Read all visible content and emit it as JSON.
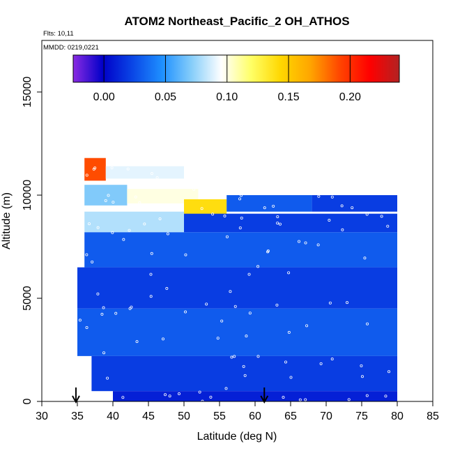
{
  "chart_data": {
    "type": "heatmap",
    "title": "ATOM2 Northeast_Pacific_2 OH_ATHOS",
    "flights_label": "Flts: 10,11",
    "dates_label": "MMDD: 0219,0221",
    "xlabel": "Latitude (deg N)",
    "ylabel": "Altitude (m)",
    "xlim": [
      30,
      85
    ],
    "ylim": [
      0,
      17500
    ],
    "x_ticks": [
      "30",
      "35",
      "40",
      "45",
      "50",
      "55",
      "60",
      "65",
      "70",
      "75",
      "80",
      "85"
    ],
    "y_ticks": [
      "0",
      "5000",
      "10000",
      "15000"
    ],
    "colorbar": {
      "range": [
        -0.025,
        0.24
      ],
      "tick_values": [
        0.0,
        0.05,
        0.1,
        0.15,
        0.2
      ],
      "tick_labels": [
        "0.00",
        "0.05",
        "0.10",
        "0.15",
        "0.20"
      ],
      "colors": [
        "#8a2be2",
        "#0000c8",
        "#0a46e6",
        "#1e90ff",
        "#87cefa",
        "#ffffff",
        "#ffff66",
        "#ffd700",
        "#ffa500",
        "#ff4500",
        "#ff0000",
        "#b22222"
      ]
    },
    "cells": [
      {
        "lat0": 36,
        "lat1": 39,
        "alt0": 10700,
        "alt1": 11800,
        "value": 0.19
      },
      {
        "lat0": 39,
        "lat1": 50,
        "alt0": 10800,
        "alt1": 11400,
        "value": 0.09
      },
      {
        "lat0": 36,
        "lat1": 42,
        "alt0": 9500,
        "alt1": 10500,
        "value": 0.07
      },
      {
        "lat0": 42,
        "lat1": 52,
        "alt0": 9600,
        "alt1": 10300,
        "value": 0.1
      },
      {
        "lat0": 50,
        "lat1": 56,
        "alt0": 8800,
        "alt1": 9800,
        "value": 0.14
      },
      {
        "lat0": 56,
        "lat1": 68,
        "alt0": 9200,
        "alt1": 10000,
        "value": 0.03
      },
      {
        "lat0": 68,
        "lat1": 80,
        "alt0": 9200,
        "alt1": 10000,
        "value": 0.02
      },
      {
        "lat0": 36,
        "lat1": 50,
        "alt0": 8200,
        "alt1": 9200,
        "value": 0.08
      },
      {
        "lat0": 50,
        "lat1": 80,
        "alt0": 8200,
        "alt1": 9100,
        "value": 0.02
      },
      {
        "lat0": 36,
        "lat1": 80,
        "alt0": 6500,
        "alt1": 8200,
        "value": 0.03
      },
      {
        "lat0": 35,
        "lat1": 80,
        "alt0": 4500,
        "alt1": 6500,
        "value": 0.02
      },
      {
        "lat0": 35,
        "lat1": 80,
        "alt0": 2200,
        "alt1": 4500,
        "value": 0.03
      },
      {
        "lat0": 37,
        "lat1": 80,
        "alt0": 500,
        "alt1": 2200,
        "value": 0.02
      },
      {
        "lat0": 40,
        "lat1": 80,
        "alt0": 0,
        "alt1": 500,
        "value": 0.01
      }
    ],
    "arrows_lat": [
      34.8,
      61.3
    ]
  }
}
